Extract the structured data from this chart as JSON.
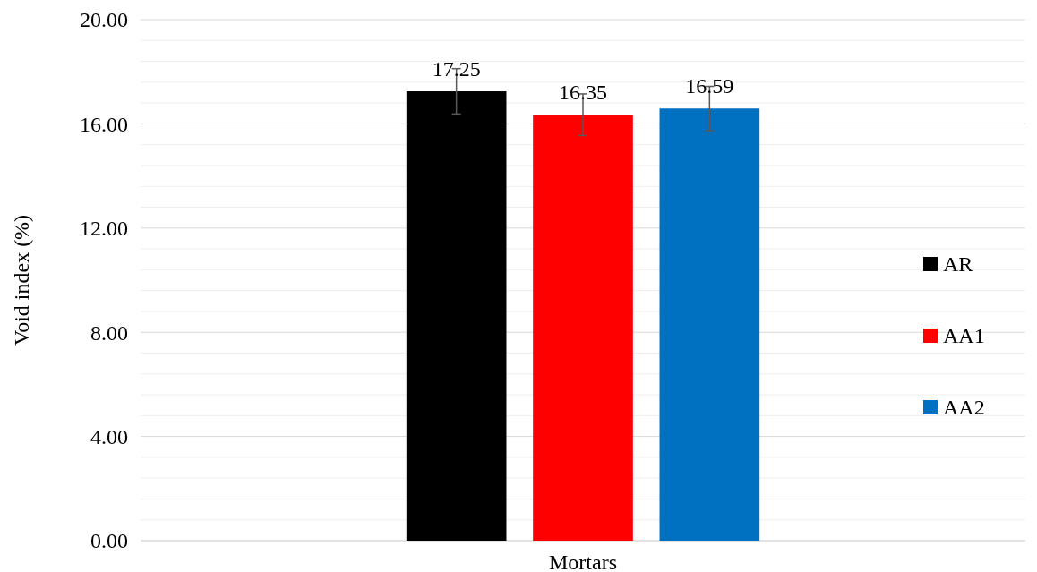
{
  "chart_data": {
    "type": "bar",
    "ylabel": "Void index (%)",
    "categories": [
      "Mortars"
    ],
    "series": [
      {
        "name": "AR",
        "color": "#000000",
        "values": [
          17.25
        ],
        "errors": [
          0.87
        ]
      },
      {
        "name": "AA1",
        "color": "#ff0000",
        "values": [
          16.35
        ],
        "errors": [
          0.8
        ]
      },
      {
        "name": "AA2",
        "color": "#0070c0",
        "values": [
          16.59
        ],
        "errors": [
          0.85
        ]
      }
    ],
    "ylim": [
      0,
      20
    ],
    "yticks": [
      {
        "value": 0,
        "label": "0.00"
      },
      {
        "value": 0.8,
        "label": null
      },
      {
        "value": 1.6,
        "label": null
      },
      {
        "value": 2.4,
        "label": null
      },
      {
        "value": 3.2,
        "label": null
      },
      {
        "value": 4,
        "label": "4.00"
      },
      {
        "value": 4.8,
        "label": null
      },
      {
        "value": 5.6,
        "label": null
      },
      {
        "value": 6.4,
        "label": null
      },
      {
        "value": 7.2,
        "label": null
      },
      {
        "value": 8,
        "label": "8.00"
      },
      {
        "value": 8.8,
        "label": null
      },
      {
        "value": 9.6,
        "label": null
      },
      {
        "value": 10.4,
        "label": null
      },
      {
        "value": 11.2,
        "label": null
      },
      {
        "value": 12,
        "label": "12.00"
      },
      {
        "value": 12.8,
        "label": null
      },
      {
        "value": 13.6,
        "label": null
      },
      {
        "value": 14.4,
        "label": null
      },
      {
        "value": 15.2,
        "label": null
      },
      {
        "value": 16,
        "label": "16.00"
      },
      {
        "value": 16.8,
        "label": null
      },
      {
        "value": 17.6,
        "label": null
      },
      {
        "value": 18.4,
        "label": null
      },
      {
        "value": 19.2,
        "label": null
      },
      {
        "value": 20,
        "label": "20.00"
      }
    ],
    "grid": "y",
    "legend": "right",
    "data_labels": true
  }
}
